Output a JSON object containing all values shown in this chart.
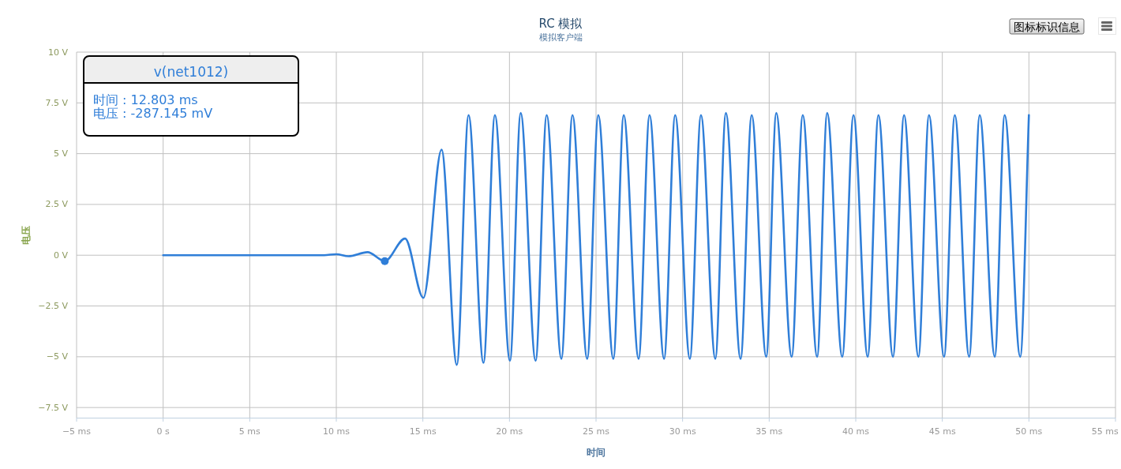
{
  "chart_data": {
    "type": "line",
    "title": "RC 模拟",
    "subtitle": "模拟客户端",
    "xlabel": "时间",
    "ylabel": "电压",
    "xlim": [
      -5,
      55
    ],
    "xticks": [
      {
        "value": -5,
        "label": "−5 ms"
      },
      {
        "value": 0,
        "label": "0 s"
      },
      {
        "value": 5,
        "label": "5 ms"
      },
      {
        "value": 10,
        "label": "10 ms"
      },
      {
        "value": 15,
        "label": "15 ms"
      },
      {
        "value": 20,
        "label": "20 ms"
      },
      {
        "value": 25,
        "label": "25 ms"
      },
      {
        "value": 30,
        "label": "30 ms"
      },
      {
        "value": 35,
        "label": "35 ms"
      },
      {
        "value": 40,
        "label": "40 ms"
      },
      {
        "value": 45,
        "label": "45 ms"
      },
      {
        "value": 50,
        "label": "50 ms"
      },
      {
        "value": 55,
        "label": "55 ms"
      }
    ],
    "ylim": [
      -8,
      10
    ],
    "yticks": [
      {
        "value": -7.5,
        "label": "−7.5 V"
      },
      {
        "value": -5,
        "label": "−5 V"
      },
      {
        "value": -2.5,
        "label": "−2.5 V"
      },
      {
        "value": 0,
        "label": "0 V"
      },
      {
        "value": 2.5,
        "label": "2.5 V"
      },
      {
        "value": 5,
        "label": "5 V"
      },
      {
        "value": 7.5,
        "label": "7.5 V"
      },
      {
        "value": 10,
        "label": "10 V"
      }
    ],
    "grid": true,
    "marker": "none",
    "line_style": "solid",
    "x": [
      0,
      9.3,
      10.0,
      10.7,
      11.8,
      12.8,
      13.97,
      15.03,
      16.08,
      16.96,
      17.64,
      18.5,
      19.16,
      20.03,
      20.65,
      21.51,
      22.15,
      23.0,
      23.64,
      24.49,
      25.13,
      26.0,
      26.6,
      27.46,
      28.09,
      28.93,
      29.57,
      30.42,
      31.06,
      31.89,
      32.5,
      33.35,
      33.99,
      34.83,
      35.41,
      36.3,
      36.94,
      37.77,
      38.35,
      39.22,
      39.87,
      40.69,
      41.31,
      42.15,
      42.79,
      43.62,
      44.23,
      45.1,
      45.72,
      46.55,
      47.16,
      48.03,
      48.6,
      49.5,
      50.0
    ],
    "series": [
      {
        "name": "v(net1012)",
        "color": "#2f7ed8",
        "values": [
          0,
          0,
          0.05,
          -0.05,
          0.15,
          -0.29,
          0.82,
          -2.1,
          5.2,
          -5.4,
          6.9,
          -5.3,
          6.9,
          -5.2,
          7.0,
          -5.2,
          6.9,
          -5.1,
          6.9,
          -5.1,
          6.9,
          -5.1,
          6.9,
          -5.1,
          6.9,
          -5.1,
          6.9,
          -5.1,
          6.9,
          -5.1,
          7.0,
          -5.1,
          6.9,
          -5.0,
          7.0,
          -5.0,
          6.9,
          -5.0,
          7.0,
          -5.0,
          6.9,
          -5.0,
          6.9,
          -5.0,
          6.9,
          -5.0,
          6.9,
          -5.0,
          6.9,
          -5.0,
          6.9,
          -5.0,
          6.9,
          -5.0,
          6.9
        ]
      },
      {
        "type": "scatter",
        "color": "#2f7ed8",
        "marker": "circle",
        "x": [
          12.8
        ],
        "values": [
          -0.29
        ]
      }
    ],
    "annotations": [
      "时间 : 12.803 ms\n电压 : -287.145 mV",
      "图标标识信息"
    ]
  }
}
